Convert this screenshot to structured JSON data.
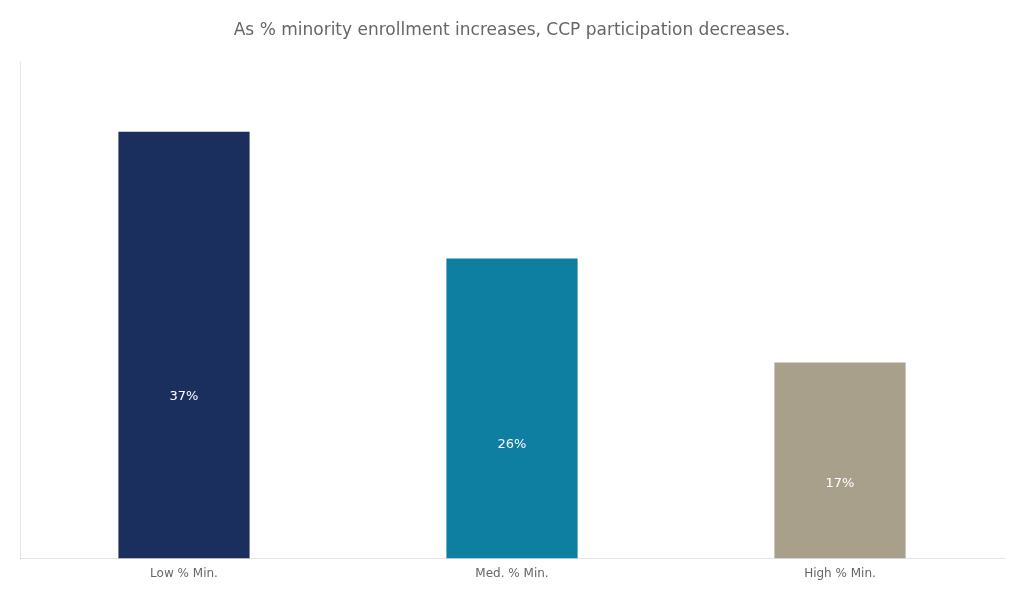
{
  "chart_data": {
    "type": "bar",
    "title": "As % minority enrollment increases, CCP participation decreases.",
    "categories": [
      "Low % Min.",
      "Med. % Min.",
      "High % Min."
    ],
    "values": [
      37,
      26,
      17
    ],
    "value_labels": [
      "37%",
      "26%",
      "17%"
    ],
    "colors": [
      "#1b2f5e",
      "#0e7fa0",
      "#a8a08a"
    ],
    "ylim": [
      0,
      43
    ],
    "grid": false,
    "data_labels": true,
    "tick_labels": "x"
  }
}
